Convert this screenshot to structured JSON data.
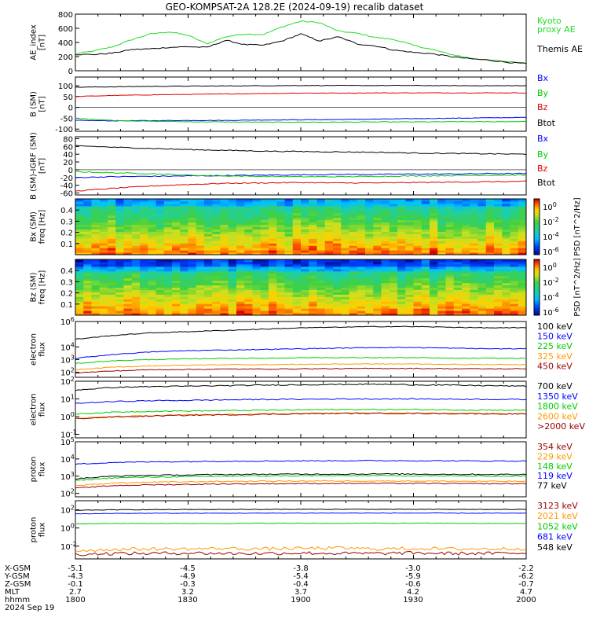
{
  "title": "GEO-KOMPSAT-2A 128.2E (2024-09-19) recalib dataset",
  "colors": {
    "black": "#000000",
    "blue": "#0000ff",
    "green": "#00cc00",
    "red": "#dd0000",
    "orange": "#ff9900",
    "darkred": "#990000",
    "kyoto": "#22dd22"
  },
  "footer": {
    "rows": [
      {
        "label": "X-GSM",
        "values": [
          "-5.1",
          "-4.5",
          "-3.8",
          "-3.0",
          "-2.2"
        ]
      },
      {
        "label": "Y-GSM",
        "values": [
          "-4.3",
          "-4.9",
          "-5.4",
          "-5.9",
          "-6.2"
        ]
      },
      {
        "label": "Z-GSM",
        "values": [
          "-0.1",
          "-0.3",
          "-0.4",
          "-0.6",
          "-0.7"
        ]
      },
      {
        "label": "MLT",
        "values": [
          "2.7",
          "3.2",
          "3.7",
          "4.2",
          "4.7"
        ]
      },
      {
        "label": "hhmm",
        "values": [
          "1800",
          "1830",
          "1900",
          "1930",
          "2000"
        ]
      }
    ],
    "date": "2024 Sep 19"
  },
  "chart_data": [
    {
      "id": "ae",
      "type": "line",
      "ylabel_lines": [
        "AE_index",
        "[nT]"
      ],
      "ylim": [
        0,
        800
      ],
      "yticks": [
        "800",
        "600",
        "400",
        "200",
        "0"
      ],
      "x": [
        0,
        5,
        10,
        15,
        20,
        25,
        30,
        35,
        40,
        45,
        50,
        55,
        60,
        65,
        70,
        75,
        80,
        85,
        90,
        95,
        100,
        105,
        110,
        115,
        120
      ],
      "series": [
        {
          "name": "Kyoto proxy AE",
          "label_lines": [
            "Kyoto",
            "proxy AE"
          ],
          "color": "#22dd22",
          "values": [
            240,
            280,
            340,
            440,
            520,
            550,
            500,
            380,
            480,
            520,
            510,
            620,
            700,
            680,
            560,
            530,
            470,
            440,
            360,
            300,
            230,
            180,
            150,
            130,
            110
          ]
        },
        {
          "name": "Themis AE",
          "label_lines": [
            "Themis AE"
          ],
          "color": "#000000",
          "values": [
            230,
            230,
            250,
            300,
            310,
            330,
            340,
            330,
            430,
            370,
            360,
            420,
            520,
            420,
            480,
            380,
            350,
            290,
            260,
            240,
            200,
            170,
            150,
            120,
            100
          ]
        }
      ]
    },
    {
      "id": "bsm",
      "type": "line",
      "ylabel_lines": [
        "B (SM)",
        "[nT]"
      ],
      "ylim": [
        -110,
        140
      ],
      "yticks": [
        "100",
        "50",
        "0",
        "-50",
        "-100"
      ],
      "ytick_values": [
        100,
        50,
        0,
        -50,
        -100
      ],
      "x": [
        0,
        10,
        20,
        30,
        40,
        50,
        60,
        70,
        80,
        90,
        100,
        110,
        120
      ],
      "series": [
        {
          "name": "Bx",
          "color": "#0000ff",
          "values": [
            -60,
            -62,
            -61,
            -60,
            -60,
            -58,
            -57,
            -56,
            -54,
            -52,
            -50,
            -48,
            -46
          ]
        },
        {
          "name": "By",
          "color": "#00cc00",
          "values": [
            -50,
            -60,
            -64,
            -66,
            -67,
            -68,
            -68,
            -68,
            -67,
            -67,
            -66,
            -66,
            -65
          ]
        },
        {
          "name": "Bz",
          "color": "#dd0000",
          "values": [
            50,
            55,
            58,
            60,
            62,
            64,
            66,
            66,
            67,
            67,
            67,
            67,
            67
          ]
        },
        {
          "name": "Btot",
          "color": "#000000",
          "values": [
            93,
            95,
            97,
            98,
            99,
            100,
            101,
            101,
            101,
            101,
            100,
            100,
            100
          ]
        }
      ]
    },
    {
      "id": "bres",
      "type": "line",
      "ylabel_lines": [
        "B (SM)-IGRF (SM)",
        "[nT]"
      ],
      "ylim": [
        -65,
        85
      ],
      "yticks": [
        "80",
        "60",
        "40",
        "20",
        "0",
        "-20",
        "-40",
        "-60"
      ],
      "ytick_values": [
        80,
        60,
        40,
        20,
        0,
        -20,
        -40,
        -60
      ],
      "x": [
        0,
        10,
        20,
        30,
        40,
        50,
        60,
        70,
        80,
        90,
        100,
        110,
        120
      ],
      "series": [
        {
          "name": "Bx",
          "color": "#0000ff",
          "values": [
            -20,
            -18,
            -17,
            -16,
            -15,
            -14,
            -13,
            -12,
            -12,
            -11,
            -11,
            -10,
            -10
          ]
        },
        {
          "name": "By",
          "color": "#00cc00",
          "values": [
            -5,
            -8,
            -10,
            -14,
            -16,
            -17,
            -18,
            -18,
            -17,
            -16,
            -15,
            -14,
            -14
          ]
        },
        {
          "name": "Bz",
          "color": "#dd0000",
          "values": [
            -55,
            -48,
            -42,
            -38,
            -35,
            -34,
            -33,
            -34,
            -34,
            -33,
            -32,
            -31,
            -30
          ]
        },
        {
          "name": "Btot",
          "color": "#000000",
          "values": [
            62,
            58,
            55,
            52,
            50,
            48,
            47,
            46,
            45,
            43,
            42,
            41,
            40
          ]
        }
      ]
    },
    {
      "id": "bx_spec",
      "type": "heatmap",
      "ylabel_lines": [
        "Bx (SM)",
        "freq [Hz]"
      ],
      "ylim": [
        0,
        0.5
      ],
      "yticks": [
        "0.4",
        "0.3",
        "0.2",
        "0.1"
      ],
      "ytick_values": [
        0.4,
        0.3,
        0.2,
        0.1
      ],
      "cbar_label": "PSD [nT^2/Hz]",
      "cbar_ticks": [
        {
          "base": "10",
          "exp": "0"
        },
        {
          "base": "10",
          "exp": "-2"
        },
        {
          "base": "10",
          "exp": "-4"
        },
        {
          "base": "10",
          "exp": "-6"
        }
      ]
    },
    {
      "id": "bz_spec",
      "type": "heatmap",
      "ylabel_lines": [
        "Bz (SM)",
        "freq [Hz]"
      ],
      "ylim": [
        0,
        0.5
      ],
      "yticks": [
        "0.4",
        "0.3",
        "0.2",
        "0.1"
      ],
      "ytick_values": [
        0.4,
        0.3,
        0.2,
        0.1
      ],
      "cbar_label": "PSD [nT^2/Hz]",
      "cbar_ticks": [
        {
          "base": "10",
          "exp": "0"
        },
        {
          "base": "10",
          "exp": "-2"
        },
        {
          "base": "10",
          "exp": "-4"
        },
        {
          "base": "10",
          "exp": "-6"
        }
      ]
    },
    {
      "id": "eflux_lo",
      "type": "line",
      "scale": "log",
      "ylabel_lines": [
        "electron",
        "flux"
      ],
      "ylog": [
        1.6,
        6
      ],
      "yticks": [
        {
          "base": "10",
          "exp": "6"
        },
        {
          "base": "10",
          "exp": "4"
        },
        {
          "base": "10",
          "exp": "3"
        },
        {
          "base": "10",
          "exp": "2"
        }
      ],
      "ytick_values": [
        6,
        4,
        3,
        2
      ],
      "x": [
        0,
        10,
        20,
        30,
        40,
        50,
        60,
        70,
        80,
        90,
        100,
        110,
        120
      ],
      "series": [
        {
          "name": "100 keV",
          "color": "#000000",
          "values": [
            4.6,
            4.9,
            5.1,
            5.2,
            5.3,
            5.4,
            5.5,
            5.55,
            5.6,
            5.6,
            5.55,
            5.5,
            5.5
          ]
        },
        {
          "name": "150 keV",
          "color": "#0000ff",
          "values": [
            3.1,
            3.4,
            3.6,
            3.7,
            3.75,
            3.8,
            3.85,
            3.9,
            3.95,
            3.95,
            3.9,
            3.85,
            3.85
          ]
        },
        {
          "name": "225 keV",
          "color": "#00cc00",
          "values": [
            2.7,
            2.9,
            3.0,
            3.05,
            3.1,
            3.1,
            3.15,
            3.15,
            3.15,
            3.15,
            3.1,
            3.1,
            3.1
          ]
        },
        {
          "name": "325 keV",
          "color": "#ff9900",
          "values": [
            2.2,
            2.4,
            2.5,
            2.55,
            2.6,
            2.6,
            2.62,
            2.65,
            2.65,
            2.65,
            2.62,
            2.6,
            2.6
          ]
        },
        {
          "name": "450 keV",
          "color": "#990000",
          "values": [
            1.95,
            2.1,
            2.2,
            2.22,
            2.25,
            2.25,
            2.27,
            2.28,
            2.3,
            2.3,
            2.28,
            2.27,
            2.27
          ]
        }
      ]
    },
    {
      "id": "eflux_hi",
      "type": "line",
      "scale": "log",
      "ylabel_lines": [
        "electron",
        "flux"
      ],
      "ylog": [
        -1.2,
        2
      ],
      "yticks": [
        {
          "base": "10",
          "exp": "2"
        },
        {
          "base": "10",
          "exp": "1"
        },
        {
          "base": "10",
          "exp": "0"
        },
        {
          "base": "10",
          "exp": "-1"
        }
      ],
      "ytick_values": [
        2,
        1,
        0,
        -1
      ],
      "x": [
        0,
        10,
        20,
        30,
        40,
        50,
        60,
        70,
        80,
        90,
        100,
        110,
        120
      ],
      "series": [
        {
          "name": "700 keV",
          "color": "#000000",
          "values": [
            1.5,
            1.65,
            1.7,
            1.72,
            1.75,
            1.78,
            1.8,
            1.82,
            1.83,
            1.8,
            1.78,
            1.75,
            1.72
          ]
        },
        {
          "name": "1350 keV",
          "color": "#0000ff",
          "values": [
            0.75,
            0.85,
            0.9,
            0.92,
            0.95,
            0.97,
            0.98,
            1.0,
            1.0,
            1.0,
            0.99,
            0.98,
            0.97
          ]
        },
        {
          "name": "1800 keV",
          "color": "#00cc00",
          "values": [
            0.15,
            0.25,
            0.3,
            0.32,
            0.34,
            0.36,
            0.38,
            0.4,
            0.4,
            0.4,
            0.38,
            0.37,
            0.36
          ]
        },
        {
          "name": "2600 keV",
          "color": "#ff9900",
          "values": [
            -0.1,
            0.0,
            0.05,
            0.1,
            0.12,
            0.15,
            0.18,
            0.2,
            0.2,
            0.2,
            0.18,
            0.17,
            0.16
          ]
        },
        {
          "name": ">2000 keV",
          "color": "#990000",
          "values": [
            -0.12,
            -0.02,
            0.03,
            0.08,
            0.1,
            0.13,
            0.16,
            0.18,
            0.18,
            0.18,
            0.17,
            0.16,
            0.15
          ]
        }
      ]
    },
    {
      "id": "pflux_lo",
      "type": "line",
      "scale": "log",
      "ylabel_lines": [
        "proton",
        "flux"
      ],
      "ylog": [
        1.8,
        5
      ],
      "yticks": [
        {
          "base": "10",
          "exp": "5"
        },
        {
          "base": "10",
          "exp": "4"
        },
        {
          "base": "10",
          "exp": "3"
        },
        {
          "base": "10",
          "exp": "2"
        }
      ],
      "ytick_values": [
        5,
        4,
        3,
        2
      ],
      "x": [
        0,
        10,
        20,
        30,
        40,
        50,
        60,
        70,
        80,
        90,
        100,
        110,
        120
      ],
      "series": [
        {
          "name": "354 keV",
          "color": "#990000",
          "values": [
            2.3,
            2.45,
            2.5,
            2.52,
            2.55,
            2.56,
            2.57,
            2.58,
            2.58,
            2.58,
            2.57,
            2.56,
            2.56
          ]
        },
        {
          "name": "229 keV",
          "color": "#ff9900",
          "values": [
            2.45,
            2.6,
            2.65,
            2.67,
            2.7,
            2.71,
            2.72,
            2.72,
            2.72,
            2.72,
            2.71,
            2.7,
            2.7
          ]
        },
        {
          "name": "148 keV",
          "color": "#00cc00",
          "values": [
            2.75,
            2.9,
            2.95,
            2.97,
            3.0,
            3.01,
            3.02,
            3.02,
            3.03,
            3.02,
            3.01,
            3.0,
            3.0
          ]
        },
        {
          "name": "119 keV",
          "color": "#0000ff",
          "values": [
            3.7,
            3.8,
            3.83,
            3.85,
            3.87,
            3.88,
            3.89,
            3.9,
            3.9,
            3.9,
            3.89,
            3.88,
            3.88
          ]
        },
        {
          "name": "77 keV",
          "color": "#000000",
          "values": [
            2.85,
            3.0,
            3.05,
            3.07,
            3.1,
            3.11,
            3.12,
            3.12,
            3.13,
            3.12,
            3.11,
            3.1,
            3.1
          ]
        }
      ]
    },
    {
      "id": "pflux_hi",
      "type": "line",
      "scale": "log",
      "ylabel_lines": [
        "proton",
        "flux"
      ],
      "ylog": [
        -3.4,
        3
      ],
      "yticks": [
        {
          "base": "10",
          "exp": "2"
        },
        {
          "base": "10",
          "exp": "0"
        },
        {
          "base": "10",
          "exp": "-2"
        }
      ],
      "ytick_values": [
        2,
        0,
        -2
      ],
      "x": [
        0,
        10,
        20,
        30,
        40,
        50,
        60,
        70,
        80,
        90,
        100,
        110,
        120
      ],
      "series": [
        {
          "name": "3123 keV",
          "color": "#990000",
          "values": [
            -2.9,
            -2.8,
            -2.8,
            -2.75,
            -2.8,
            -2.8,
            -2.75,
            -2.8,
            -2.8,
            -2.75,
            -2.8,
            -2.8,
            -2.75
          ]
        },
        {
          "name": "2021 keV",
          "color": "#ff9900",
          "values": [
            -2.5,
            -2.35,
            -2.3,
            -2.3,
            -2.25,
            -2.3,
            -2.25,
            -2.2,
            -2.3,
            -2.25,
            -2.3,
            -2.3,
            -2.25
          ]
        },
        {
          "name": "1052 keV",
          "color": "#00cc00",
          "values": [
            0.45,
            0.5,
            0.5,
            0.5,
            0.5,
            0.52,
            0.52,
            0.52,
            0.52,
            0.52,
            0.52,
            0.5,
            0.5
          ]
        },
        {
          "name": "681 keV",
          "color": "#0000ff",
          "values": [
            1.55,
            1.6,
            1.62,
            1.62,
            1.63,
            1.63,
            1.64,
            1.64,
            1.64,
            1.64,
            1.63,
            1.63,
            1.62
          ]
        },
        {
          "name": "548 keV",
          "color": "#000000",
          "values": [
            1.95,
            2.0,
            2.02,
            2.03,
            2.04,
            2.05,
            2.05,
            2.06,
            2.06,
            2.05,
            2.05,
            2.04,
            2.04
          ]
        }
      ]
    }
  ]
}
